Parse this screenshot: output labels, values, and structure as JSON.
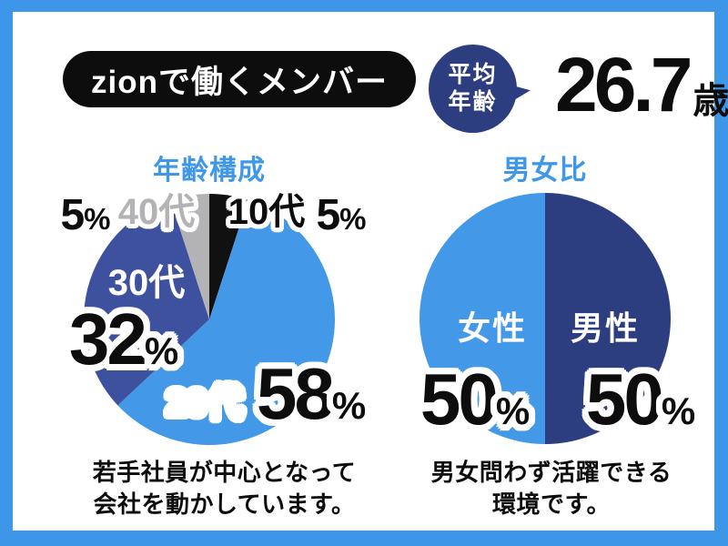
{
  "frame": {
    "border_color": "#3d96e8",
    "background": "#ffffff"
  },
  "header": {
    "title": "zionで働くメンバー",
    "badge_bg": "#0d0d0d",
    "badge_text_color": "#ffffff"
  },
  "average_age": {
    "bubble_line1": "平均",
    "bubble_line2": "年齢",
    "bubble_color": "#2d3e80",
    "value": "26.7",
    "unit": "歳"
  },
  "misc": {
    "percent_sign": "%"
  },
  "chart_data": [
    {
      "type": "pie",
      "title": "年齢構成",
      "title_color": "#3f97e8",
      "labels": [
        "10代",
        "20代",
        "30代",
        "40代"
      ],
      "values": [
        5,
        58,
        32,
        5
      ],
      "colors": [
        "#111111",
        "#4498e8",
        "#3e519f",
        "#b3b3b5"
      ],
      "start_angle_deg": 0,
      "direction": "clockwise",
      "legend": "none",
      "caption_line1": "若手社員が中心となって",
      "caption_line2": "会社を動かしています。"
    },
    {
      "type": "pie",
      "title": "男女比",
      "title_color": "#3f97e8",
      "labels": [
        "男性",
        "女性"
      ],
      "values": [
        50,
        50
      ],
      "colors": [
        "#2d3e80",
        "#4498e8"
      ],
      "start_angle_deg": 0,
      "direction": "clockwise",
      "legend": "none",
      "caption_line1": "男女問わず活躍できる",
      "caption_line2": "環境です。"
    }
  ]
}
